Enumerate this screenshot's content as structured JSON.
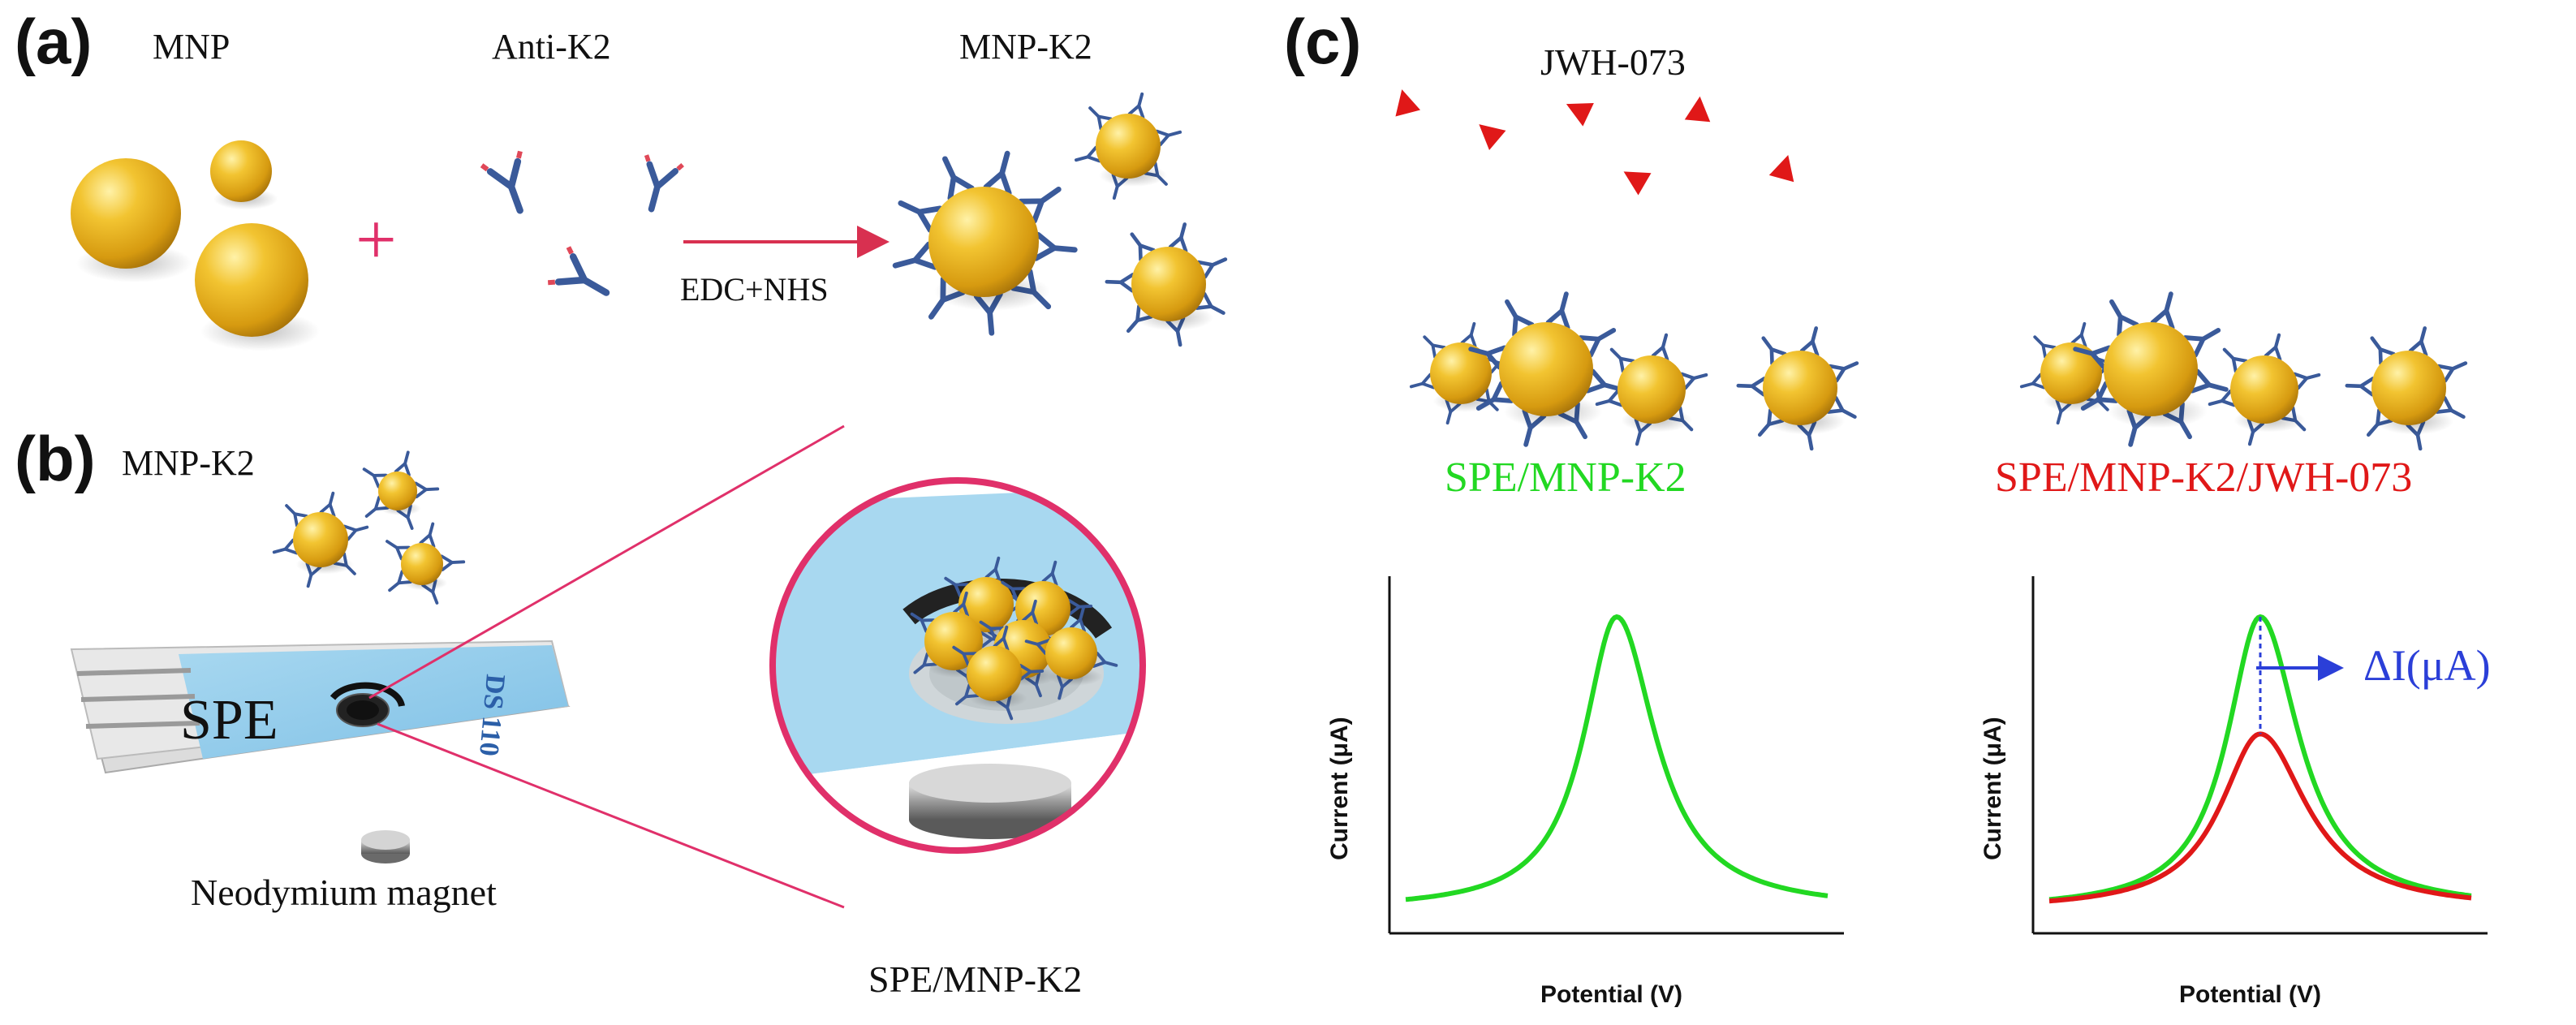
{
  "panels": {
    "a": {
      "letter": "(a)",
      "mnp_label": "MNP",
      "antibody_label": "Anti-K2",
      "product_label": "MNP-K2",
      "plus_sign": "+",
      "reagent_label": "EDC+NHS"
    },
    "b": {
      "letter": "(b)",
      "mnp_k2_label": "MNP-K2",
      "electrode_label": "SPE",
      "strip_text": "DS 110",
      "magnet_label": "Neodymium magnet",
      "zoom_label": "SPE/MNP-K2"
    },
    "c": {
      "letter": "(c)",
      "analyte_label": "JWH-073",
      "left_label": "SPE/MNP-K2",
      "right_label": "SPE/MNP-K2/JWH-073",
      "delta_label": "ΔI(μA)"
    }
  },
  "colors": {
    "gold": "#e8b018",
    "antibody": "#3a5a9a",
    "plus": "#e0306a",
    "arrow": "#d83050",
    "zoom_ring": "#e0306a",
    "green": "#22d822",
    "red": "#e01818",
    "blue": "#2b3fd8",
    "analyte": "#e01818"
  },
  "chart_data": [
    {
      "type": "line",
      "title": "",
      "xlabel": "Potential (V)",
      "ylabel": "Current (μA)",
      "series": [
        {
          "peak_x": 0.5,
          "peak_y": 1.0,
          "baseline": 0.05,
          "width": 0.1
        }
      ]
    },
    {
      "type": "line",
      "title": "",
      "xlabel": "Potential (V)",
      "ylabel": "Current (μA)",
      "series": [
        {
          "peak_x": 0.5,
          "peak_y": 1.0,
          "baseline": 0.05,
          "width": 0.1
        },
        {
          "peak_x": 0.5,
          "peak_y": 0.62,
          "baseline": 0.05,
          "width": 0.12
        }
      ],
      "annotation": "ΔI(μA)"
    }
  ]
}
